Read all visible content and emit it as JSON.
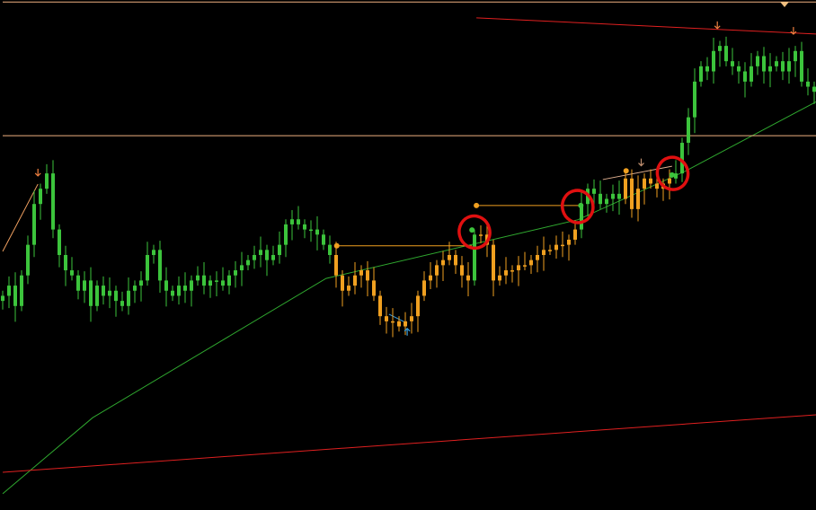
{
  "chart_data": {
    "type": "candlestick",
    "title": "",
    "xlabel": "",
    "ylabel": "",
    "ylim": [
      0,
      100
    ],
    "grid": false,
    "background": "#000000",
    "closes": [
      42,
      44,
      40,
      46,
      52,
      60,
      63,
      66,
      55,
      50,
      47,
      46,
      43,
      45,
      40,
      44,
      42,
      43,
      41,
      40,
      43,
      44,
      45,
      50,
      51,
      45,
      43,
      42,
      44,
      43,
      45,
      46,
      44,
      45,
      45,
      44,
      46,
      47,
      48,
      49,
      50,
      51,
      49,
      50,
      52,
      56,
      57,
      56,
      55,
      55,
      54,
      52,
      50,
      46,
      43,
      44,
      46,
      47,
      45,
      42,
      38,
      37,
      37,
      36,
      37,
      38,
      42,
      45,
      46,
      48,
      49,
      50,
      48,
      46,
      45,
      54,
      54,
      52,
      45,
      46,
      47,
      47,
      48,
      48,
      49,
      50,
      51,
      51,
      52,
      52,
      53,
      55,
      60,
      63,
      62,
      60,
      61,
      62,
      61,
      65,
      59,
      63,
      65,
      64,
      63,
      64,
      65,
      66,
      72,
      77,
      84,
      87,
      86,
      90,
      91,
      88,
      87,
      86,
      84,
      87,
      89,
      86,
      87,
      88,
      86,
      88,
      90,
      84,
      83,
      82
    ],
    "regimes": [
      {
        "from": 0,
        "to": 52,
        "color": "#3cc43c"
      },
      {
        "from": 53,
        "to": 74,
        "color": "#f0a020"
      },
      {
        "from": 75,
        "to": 75,
        "color": "#3cc43c"
      },
      {
        "from": 76,
        "to": 91,
        "color": "#f0a020"
      },
      {
        "from": 92,
        "to": 98,
        "color": "#3cc43c"
      },
      {
        "from": 99,
        "to": 106,
        "color": "#f0a020"
      },
      {
        "from": 107,
        "to": 129,
        "color": "#3cc43c"
      }
    ],
    "lines": [
      {
        "kind": "moving-average",
        "color": "#2fa82f",
        "points": [
          [
            0,
            3.2
          ],
          [
            14.3,
            18.1
          ],
          [
            51.4,
            45.4
          ],
          [
            91.4,
            56.9
          ],
          [
            108.6,
            66.5
          ],
          [
            129.7,
            80.3
          ]
        ]
      },
      {
        "kind": "horizontal-level",
        "color": "#f0b080",
        "points": [
          [
            0,
            73.4
          ],
          [
            129.7,
            73.4
          ]
        ]
      },
      {
        "kind": "horizontal-level",
        "color": "#f0b080",
        "points": [
          [
            0,
            99.6
          ],
          [
            129.7,
            99.6
          ]
        ]
      },
      {
        "kind": "trendline",
        "color": "#e02020",
        "points": [
          [
            75.3,
            96.5
          ],
          [
            129.7,
            93.3
          ]
        ]
      },
      {
        "kind": "trendline",
        "color": "#e02020",
        "points": [
          [
            0,
            7.4
          ],
          [
            129.7,
            18.7
          ]
        ]
      },
      {
        "kind": "level",
        "color": "#f0a020",
        "points": [
          [
            53.1,
            51.8
          ],
          [
            74.6,
            51.8
          ]
        ]
      },
      {
        "kind": "level",
        "color": "#f0a020",
        "points": [
          [
            75.3,
            59.7
          ],
          [
            92.1,
            59.7
          ]
        ]
      },
      {
        "kind": "zigzag",
        "color": "#f0a060",
        "points": [
          [
            0,
            50.7
          ],
          [
            5.6,
            63.9
          ]
        ]
      },
      {
        "kind": "zigzag",
        "color": "#3aa0e0",
        "points": [
          [
            61.4,
            38.4
          ],
          [
            64.3,
            36.6
          ]
        ]
      },
      {
        "kind": "zigzag",
        "color": "#e0b090",
        "points": [
          [
            95.4,
            64.8
          ],
          [
            106.4,
            67.4
          ]
        ]
      }
    ],
    "dots": [
      {
        "x": 53.1,
        "y": 51.8,
        "color": "#f0a020"
      },
      {
        "x": 75.3,
        "y": 59.7,
        "color": "#f0a020"
      },
      {
        "x": 99.1,
        "y": 66.5,
        "color": "#f0a020"
      },
      {
        "x": 74.6,
        "y": 54.9,
        "color": "#3cc43c"
      },
      {
        "x": 91.9,
        "y": 59.7,
        "color": "#3cc43c"
      },
      {
        "x": 106.4,
        "y": 65.7,
        "color": "#3cc43c"
      }
    ],
    "arrows": [
      {
        "x": 5.6,
        "y": 65.5,
        "dir": "down",
        "color": "#f08040"
      },
      {
        "x": 101.5,
        "y": 67.5,
        "dir": "down",
        "color": "#c09070"
      },
      {
        "x": 113.6,
        "y": 94.4,
        "dir": "down",
        "color": "#f08040"
      },
      {
        "x": 125.7,
        "y": 93.3,
        "dir": "down",
        "color": "#f08040"
      },
      {
        "x": 64.3,
        "y": 35.6,
        "dir": "up",
        "color": "#3aa0e0"
      }
    ],
    "annotations": [
      {
        "kind": "hand-drawn-circle",
        "x": 75,
        "y": 54.5,
        "color": "#e01010"
      },
      {
        "kind": "hand-drawn-circle",
        "x": 91.4,
        "y": 59.5,
        "color": "#e01010"
      },
      {
        "kind": "hand-drawn-circle",
        "x": 106.5,
        "y": 66,
        "color": "#e01010"
      }
    ]
  }
}
